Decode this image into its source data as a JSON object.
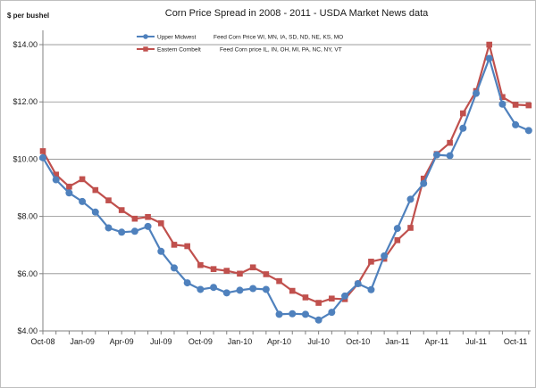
{
  "chart_data": {
    "type": "line",
    "title": "Corn Price Spread in 2008 - 2011 - USDA Market News data",
    "ylabel": "$ per bushel",
    "xlabel": "",
    "ylim": [
      4,
      14.5
    ],
    "yticks": [
      4,
      6,
      8,
      10,
      12,
      14
    ],
    "ytick_labels": [
      "$4.00",
      "$6.00",
      "$8.00",
      "$10.00",
      "$12.00",
      "$14.00"
    ],
    "xtick_labels": [
      "Oct-08",
      "Jan-09",
      "Apr-09",
      "Jul-09",
      "Oct-09",
      "Jan-10",
      "Apr-10",
      "Jul-10",
      "Oct-10",
      "Jan-11",
      "Apr-11",
      "Jul-11",
      "Oct-11"
    ],
    "x": [
      "Oct-08",
      "Nov-08",
      "Dec-08",
      "Jan-09",
      "Feb-09",
      "Mar-09",
      "Apr-09",
      "May-09",
      "Jun-09",
      "Jul-09",
      "Aug-09",
      "Sep-09",
      "Oct-09",
      "Nov-09",
      "Dec-09",
      "Jan-10",
      "Feb-10",
      "Mar-10",
      "Apr-10",
      "May-10",
      "Jun-10",
      "Jul-10",
      "Aug-10",
      "Sep-10",
      "Oct-10",
      "Nov-10",
      "Dec-10",
      "Jan-11",
      "Feb-11",
      "Mar-11",
      "Apr-11",
      "May-11",
      "Jun-11",
      "Jul-11",
      "Aug-11",
      "Sep-11",
      "Oct-11",
      "Nov-11"
    ],
    "grid": "horizontal",
    "legend_position": "top-left",
    "series": [
      {
        "name": "Upper Midwest",
        "legend_detail": "Feed Corn Price   WI, MN, IA, SD, ND, NE, KS, MO",
        "color": "#4f81bd",
        "marker": "circle",
        "values": [
          10.05,
          9.28,
          8.82,
          8.52,
          8.15,
          7.6,
          7.45,
          7.48,
          7.65,
          6.78,
          6.2,
          5.68,
          5.45,
          5.52,
          5.33,
          5.42,
          5.48,
          5.45,
          4.58,
          4.6,
          4.58,
          4.38,
          4.65,
          5.22,
          5.65,
          5.44,
          6.62,
          7.58,
          8.6,
          9.15,
          10.15,
          10.12,
          11.08,
          12.3,
          13.52,
          11.92,
          11.2,
          11.0
        ]
      },
      {
        "name": "Eastern Cornbelt",
        "legend_detail": "Feed Corn price IL, IN, OH, MI, PA, NC, NY, VT",
        "color": "#c0504d",
        "marker": "square",
        "values": [
          10.28,
          9.46,
          9.04,
          9.3,
          8.92,
          8.56,
          8.22,
          7.92,
          7.98,
          7.76,
          7.01,
          6.96,
          6.3,
          6.16,
          6.1,
          6.0,
          6.22,
          5.98,
          5.74,
          5.4,
          5.17,
          4.98,
          5.13,
          5.11,
          5.65,
          6.42,
          6.52,
          7.17,
          7.6,
          9.32,
          10.18,
          10.57,
          11.6,
          12.38,
          14.0,
          12.17,
          11.9,
          11.88
        ]
      }
    ]
  }
}
